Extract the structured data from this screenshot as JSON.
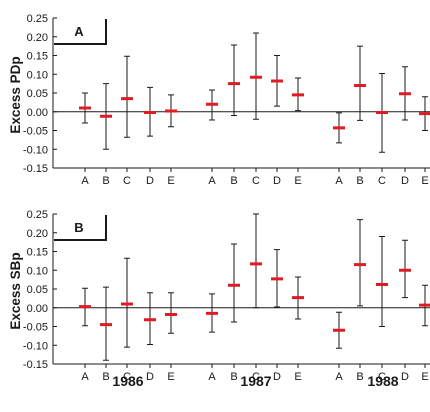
{
  "colors": {
    "axis": "#1a1a1a",
    "marker": "#e01b24",
    "errorbar": "#1a1a1a",
    "zero_line": "#1a1a1a"
  },
  "years": [
    "1986",
    "1987",
    "1988"
  ],
  "chart_data": [
    {
      "type": "errorbar",
      "panel": "A",
      "ylabel": "Excess PDp",
      "ylim": [
        -0.15,
        0.25
      ],
      "yticks": [
        "-0.15",
        "-0.10",
        "-0.05",
        "0.00",
        "0.05",
        "0.10",
        "0.15",
        "0.20",
        "0.25"
      ],
      "grid": false,
      "groups": [
        {
          "year": "1986",
          "categories": [
            "A",
            "B",
            "C",
            "D",
            "E"
          ],
          "values": [
            0.01,
            -0.012,
            0.035,
            -0.002,
            0.002
          ],
          "lower": [
            -0.03,
            -0.1,
            -0.068,
            -0.065,
            -0.04
          ],
          "upper": [
            0.05,
            0.075,
            0.148,
            0.065,
            0.045
          ]
        },
        {
          "year": "1987",
          "categories": [
            "A",
            "B",
            "C",
            "D",
            "E"
          ],
          "values": [
            0.02,
            0.075,
            0.092,
            0.082,
            0.045
          ],
          "lower": [
            -0.022,
            -0.01,
            -0.02,
            0.015,
            0.003
          ],
          "upper": [
            0.058,
            0.178,
            0.21,
            0.15,
            0.09
          ]
        },
        {
          "year": "1988",
          "categories": [
            "A",
            "B",
            "C",
            "D",
            "E"
          ],
          "values": [
            -0.043,
            0.07,
            -0.002,
            0.048,
            -0.005
          ],
          "lower": [
            -0.083,
            -0.023,
            -0.108,
            -0.022,
            -0.05
          ],
          "upper": [
            -0.003,
            0.175,
            0.102,
            0.12,
            0.04
          ]
        }
      ]
    },
    {
      "type": "errorbar",
      "panel": "B",
      "ylabel": "Excess SBp",
      "ylim": [
        -0.15,
        0.25
      ],
      "yticks": [
        "-0.15",
        "-0.10",
        "-0.05",
        "0.00",
        "0.05",
        "0.10",
        "0.15",
        "0.20",
        "0.25"
      ],
      "grid": false,
      "groups": [
        {
          "year": "1986",
          "categories": [
            "A",
            "B",
            "C",
            "D",
            "E"
          ],
          "values": [
            0.003,
            -0.045,
            0.01,
            -0.032,
            -0.018
          ],
          "lower": [
            -0.048,
            -0.14,
            -0.105,
            -0.098,
            -0.068
          ],
          "upper": [
            0.052,
            0.055,
            0.132,
            0.04,
            0.04
          ]
        },
        {
          "year": "1987",
          "categories": [
            "A",
            "B",
            "C",
            "D",
            "E"
          ],
          "values": [
            -0.015,
            0.06,
            0.117,
            0.077,
            0.027
          ],
          "lower": [
            -0.065,
            -0.038,
            0.0,
            0.002,
            -0.03
          ],
          "upper": [
            0.037,
            0.17,
            0.25,
            0.155,
            0.082
          ]
        },
        {
          "year": "1988",
          "categories": [
            "A",
            "B",
            "C",
            "D",
            "E"
          ],
          "values": [
            -0.06,
            0.115,
            0.062,
            0.1,
            0.007
          ],
          "lower": [
            -0.108,
            0.005,
            -0.05,
            0.027,
            -0.048
          ],
          "upper": [
            -0.012,
            0.235,
            0.19,
            0.18,
            0.06
          ]
        }
      ]
    }
  ]
}
